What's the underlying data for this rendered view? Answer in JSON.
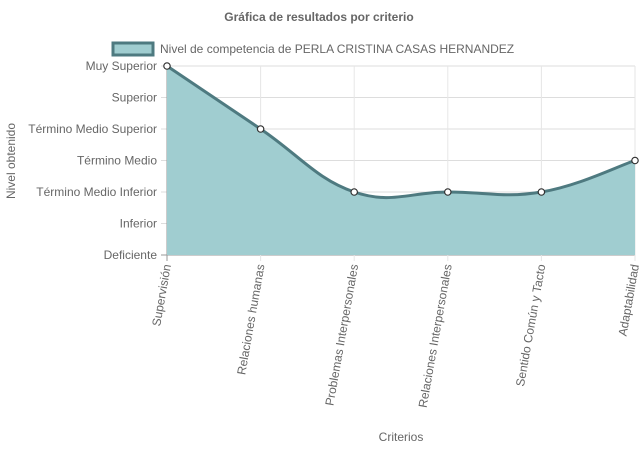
{
  "chart_data": {
    "type": "area",
    "title": "Gráfica de resultados por criterio",
    "xlabel": "Criterios",
    "ylabel": "Nivel obtenido",
    "y_levels": [
      "Deficiente",
      "Inferior",
      "Término Medio Inferior",
      "Término Medio",
      "Término Medio Superior",
      "Superior",
      "Muy Superior"
    ],
    "categories": [
      "Supervisión",
      "Relaciones humanas",
      "Problemas Interpersonales",
      "Relaciones Interpersonales",
      "Sentido Común y Tacto",
      "Adaptabilidad"
    ],
    "series": [
      {
        "name": "Nivel de competencia de PERLA CRISTINA CASAS HERNANDEZ",
        "values": [
          "Muy Superior",
          "Término Medio Superior",
          "Término Medio Inferior",
          "Término Medio Inferior",
          "Término Medio Inferior",
          "Término Medio"
        ],
        "fill_color": "#a0cdd0",
        "line_color": "#4e7a80"
      }
    ],
    "grid": true,
    "legend_position": "top"
  }
}
